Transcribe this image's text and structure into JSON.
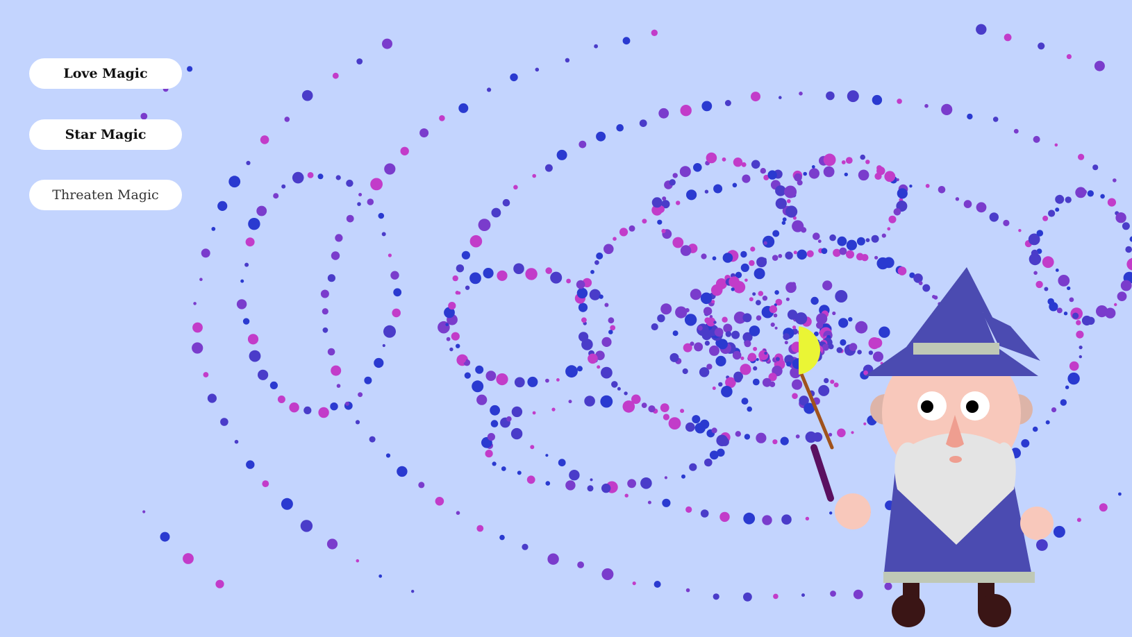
{
  "buttons": {
    "love": "Love Magic",
    "star": "Star Magic",
    "threaten": "Threaten Magic"
  },
  "colors": {
    "background": "#c3d4fe",
    "particle_palette": [
      "#c23cc9",
      "#7a3ccc",
      "#4a3cc9",
      "#2a3ad0"
    ],
    "wand_orb": "#eaf535",
    "robe": "#4b4bb1",
    "skin": "#f8c8bb",
    "beard": "#e4e4e4",
    "trim": "#bfc8b6",
    "boots": "#3a1515"
  }
}
